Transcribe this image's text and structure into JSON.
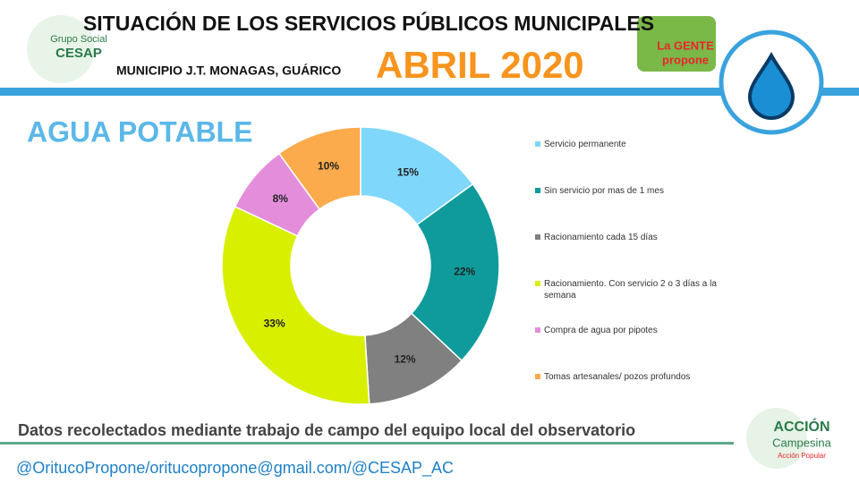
{
  "header": {
    "title": "SITUACIÓN DE LOS SERVICIOS PÚBLICOS MUNICIPALES",
    "municipality": "MUNICIPIO J.T. MONAGAS, GUÁRICO",
    "period": "ABRIL 2020",
    "logo_left": [
      "Grupo Social",
      "CESAP"
    ],
    "logo_right": [
      "La GENTE",
      "propone"
    ]
  },
  "chart_data": {
    "type": "donut",
    "title": "AGUA POTABLE",
    "categories": [
      "Servicio permanente",
      "Sin servicio por mas de 1 mes",
      "Racionamiento cada 15 días",
      "Racionamiento. Con servicio 2 o 3 días a la semana",
      "Compra de agua por pipotes",
      "Tomas artesanales/ pozos profundos"
    ],
    "values": [
      15,
      22,
      12,
      33,
      8,
      10
    ],
    "value_labels": [
      "15%",
      "22%",
      "12%",
      "33%",
      "8%",
      "10%"
    ],
    "colors": [
      "#7fd7fb",
      "#0f9b9b",
      "#808080",
      "#d8ef00",
      "#e48edb",
      "#fbab4b"
    ],
    "legend": "right"
  },
  "footer": {
    "note": "Datos recolectados mediante trabajo de campo del equipo local del observatorio",
    "contact": "@OritucoPropone/oritucopropone@gmail.com/@CESAP_AC",
    "logo": [
      "ACCIÓN",
      "Campesina",
      "Acción Popular"
    ]
  }
}
